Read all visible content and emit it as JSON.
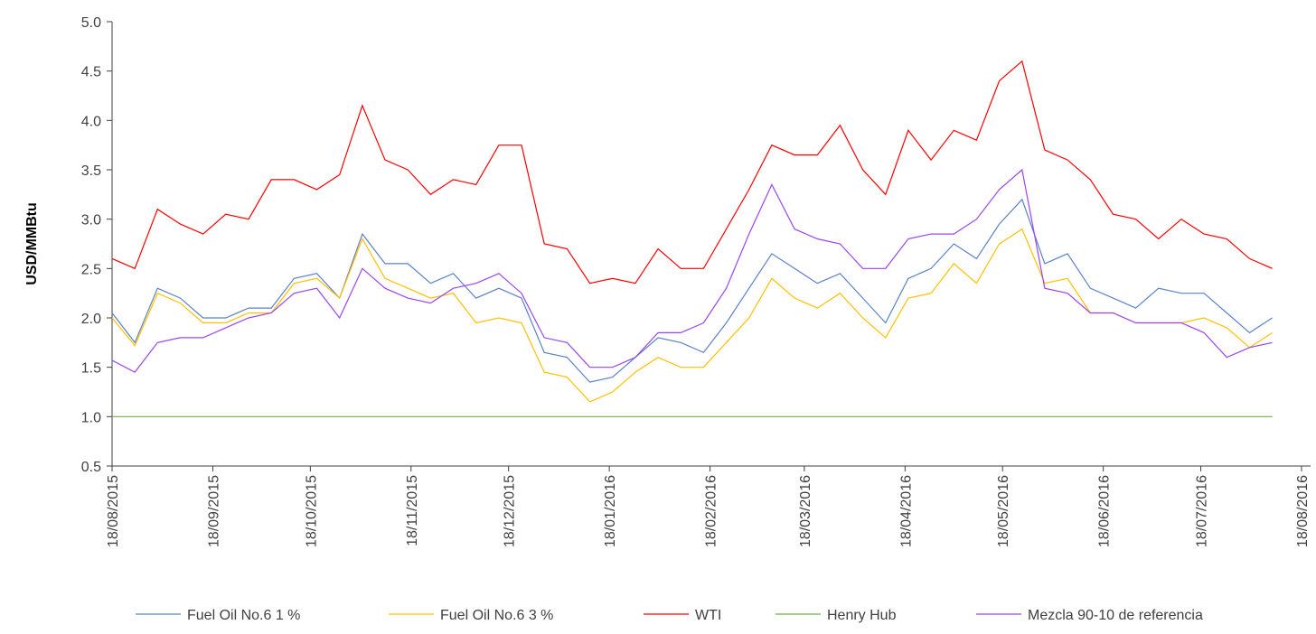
{
  "chart_data": {
    "type": "line",
    "y_label": "USD/MMBtu",
    "x": [
      "18/08/2015",
      "25/08/2015",
      "01/09/2015",
      "08/09/2015",
      "15/09/2015",
      "22/09/2015",
      "29/09/2015",
      "06/10/2015",
      "13/10/2015",
      "20/10/2015",
      "27/10/2015",
      "03/11/2015",
      "10/11/2015",
      "17/11/2015",
      "24/11/2015",
      "01/12/2015",
      "08/12/2015",
      "15/12/2015",
      "22/12/2015",
      "29/12/2015",
      "05/01/2016",
      "12/01/2016",
      "19/01/2016",
      "26/01/2016",
      "02/02/2016",
      "09/02/2016",
      "16/02/2016",
      "23/02/2016",
      "01/03/2016",
      "08/03/2016",
      "15/03/2016",
      "22/03/2016",
      "29/03/2016",
      "05/04/2016",
      "12/04/2016",
      "19/04/2016",
      "26/04/2016",
      "03/05/2016",
      "10/05/2016",
      "17/05/2016",
      "24/05/2016",
      "31/05/2016",
      "07/06/2016",
      "14/06/2016",
      "21/06/2016",
      "28/06/2016",
      "05/07/2016",
      "12/07/2016",
      "19/07/2016",
      "26/07/2016",
      "02/08/2016",
      "09/08/2016"
    ],
    "xlim": [
      "18/08/2015",
      "18/08/2016"
    ],
    "xticks": [
      "18/08/2015",
      "18/09/2015",
      "18/10/2015",
      "18/11/2015",
      "18/12/2015",
      "18/01/2016",
      "18/02/2016",
      "18/03/2016",
      "18/04/2016",
      "18/05/2016",
      "18/06/2016",
      "18/07/2016",
      "18/08/2016"
    ],
    "ylim": [
      0.5,
      5
    ],
    "yticks": [
      0.5,
      {
        "value": 1,
        "label": "1.0"
      },
      1.5,
      {
        "value": 2,
        "label": "2.0"
      },
      2.5,
      {
        "value": 3,
        "label": "3.0"
      },
      3.5,
      {
        "value": 4,
        "label": "4.0"
      },
      4.5,
      {
        "value": 5,
        "label": "5.0"
      }
    ],
    "grid": false,
    "legend": "bottom",
    "series": [
      {
        "name": "Fuel Oil No.6 1 %",
        "color": "#5b82c8",
        "values": [
          2.05,
          1.75,
          2.3,
          2.2,
          2.0,
          2.0,
          2.1,
          2.1,
          2.4,
          2.45,
          2.2,
          2.85,
          2.55,
          2.55,
          2.35,
          2.45,
          2.2,
          2.3,
          2.2,
          1.65,
          1.6,
          1.35,
          1.4,
          1.6,
          1.8,
          1.75,
          1.65,
          1.95,
          2.3,
          2.65,
          2.5,
          2.35,
          2.45,
          2.2,
          1.95,
          2.4,
          2.5,
          2.75,
          2.6,
          2.95,
          3.2,
          2.55,
          2.65,
          2.3,
          2.2,
          2.1,
          2.3,
          2.25,
          2.25,
          2.05,
          1.85,
          2.0
        ]
      },
      {
        "name": "Fuel Oil No.6 3 %",
        "color": "#ffc000",
        "values": [
          2.0,
          1.72,
          2.25,
          2.15,
          1.95,
          1.95,
          2.05,
          2.05,
          2.35,
          2.4,
          2.2,
          2.8,
          2.4,
          2.3,
          2.2,
          2.25,
          1.95,
          2.0,
          1.95,
          1.45,
          1.4,
          1.15,
          1.25,
          1.45,
          1.6,
          1.5,
          1.5,
          1.75,
          2.0,
          2.4,
          2.2,
          2.1,
          2.25,
          2.0,
          1.8,
          2.2,
          2.25,
          2.55,
          2.35,
          2.75,
          2.9,
          2.35,
          2.4,
          2.05,
          2.05,
          1.95,
          1.95,
          1.95,
          2.0,
          1.9,
          1.7,
          1.85
        ]
      },
      {
        "name": "WTI",
        "color": "#ff0000",
        "values": [
          2.6,
          2.5,
          3.1,
          2.95,
          2.85,
          3.05,
          3.0,
          3.4,
          3.4,
          3.3,
          3.45,
          4.15,
          3.6,
          3.5,
          3.25,
          3.4,
          3.35,
          3.75,
          3.75,
          2.75,
          2.7,
          2.35,
          2.4,
          2.35,
          2.7,
          2.5,
          2.5,
          2.9,
          3.3,
          3.75,
          3.65,
          3.65,
          3.95,
          3.5,
          3.25,
          3.9,
          3.6,
          3.9,
          3.8,
          4.4,
          4.6,
          3.7,
          3.6,
          3.4,
          3.05,
          3.0,
          2.8,
          3.0,
          2.85,
          2.8,
          2.6,
          2.5
        ]
      },
      {
        "name": "Henry Hub",
        "color": "#70ad47",
        "values": [
          1,
          1,
          1,
          1,
          1,
          1,
          1,
          1,
          1,
          1,
          1,
          1,
          1,
          1,
          1,
          1,
          1,
          1,
          1,
          1,
          1,
          1,
          1,
          1,
          1,
          1,
          1,
          1,
          1,
          1,
          1,
          1,
          1,
          1,
          1,
          1,
          1,
          1,
          1,
          1,
          1,
          1,
          1,
          1,
          1,
          1,
          1,
          1,
          1,
          1,
          1,
          1
        ]
      },
      {
        "name": "Mezcla 90-10 de referencia",
        "color": "#9b45f0",
        "values": [
          1.57,
          1.45,
          1.75,
          1.8,
          1.8,
          1.9,
          2.0,
          2.05,
          2.25,
          2.3,
          2.0,
          2.5,
          2.3,
          2.2,
          2.15,
          2.3,
          2.35,
          2.45,
          2.25,
          1.8,
          1.75,
          1.5,
          1.5,
          1.6,
          1.85,
          1.85,
          1.95,
          2.3,
          2.85,
          3.35,
          2.9,
          2.8,
          2.75,
          2.5,
          2.5,
          2.8,
          2.85,
          2.85,
          3.0,
          3.3,
          3.5,
          2.3,
          2.25,
          2.05,
          2.05,
          1.95,
          1.95,
          1.95,
          1.85,
          1.6,
          1.7,
          1.75
        ]
      }
    ]
  }
}
